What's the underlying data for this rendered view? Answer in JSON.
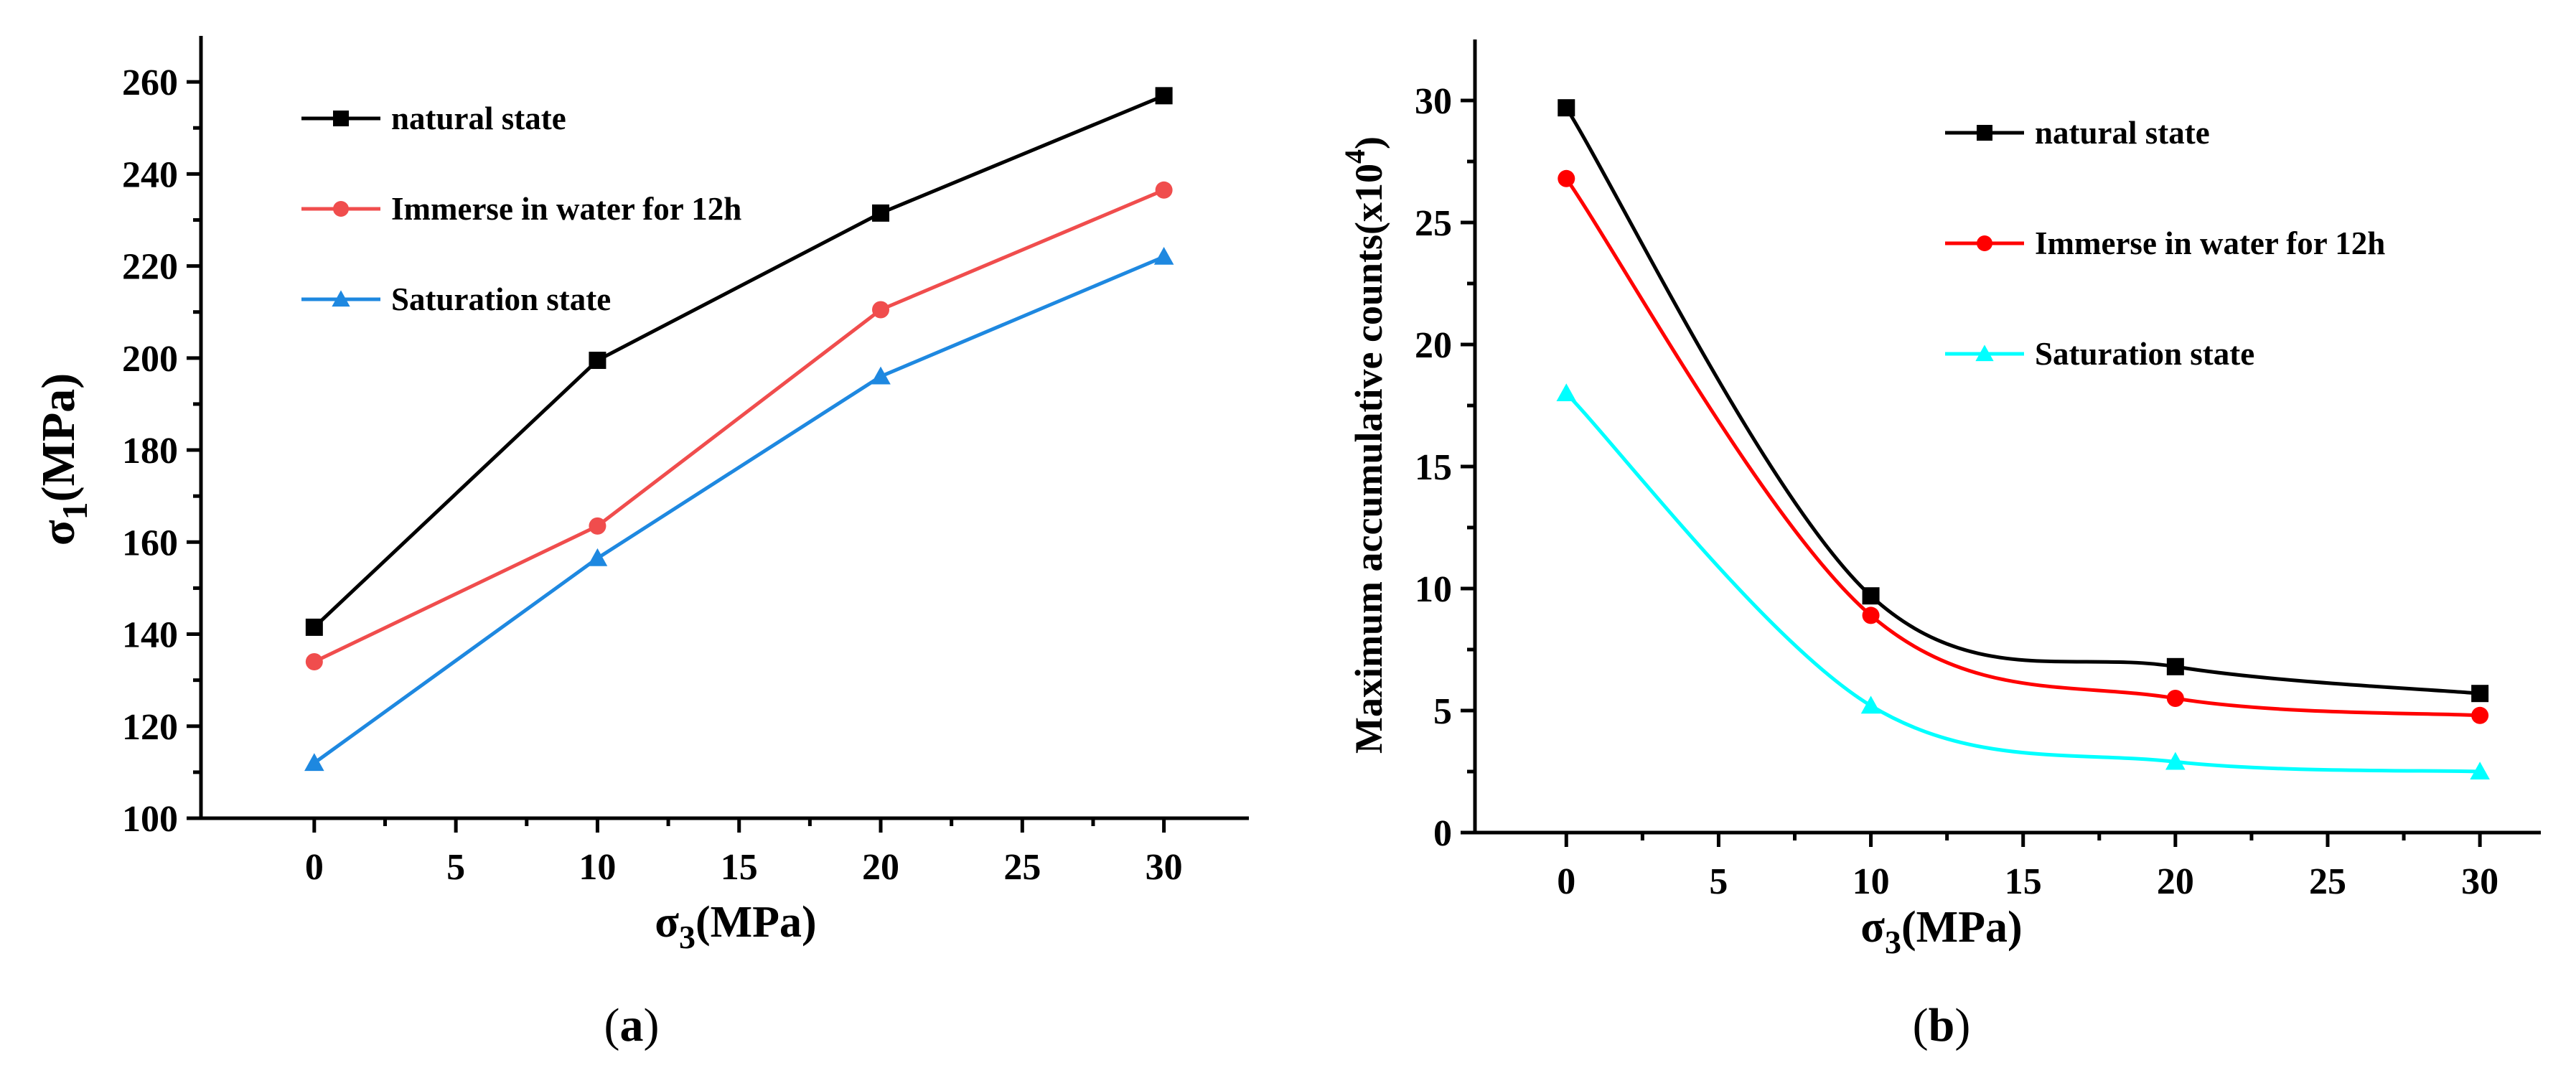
{
  "chart_data": [
    {
      "type": "line",
      "panel": "a",
      "caption": "(a)",
      "caption_open": "(",
      "caption_letter": "a",
      "caption_close": ")",
      "xlabel": "σ3(MPa)",
      "xlabel_main": "σ",
      "xlabel_sub": "3",
      "xlabel_rest": "(MPa)",
      "ylabel": "σ1(MPa)",
      "ylabel_main": "σ",
      "ylabel_sub": "1",
      "ylabel_rest": "(MPa)",
      "xlim": [
        -4,
        33
      ],
      "ylim": [
        100,
        270
      ],
      "xticks": [
        0,
        5,
        10,
        15,
        20,
        25,
        30
      ],
      "yticks": [
        100,
        120,
        140,
        160,
        180,
        200,
        220,
        240,
        260
      ],
      "legend_position": "top-left",
      "x": [
        0,
        10,
        20,
        30
      ],
      "series": [
        {
          "name": "natural state",
          "color": "#000000",
          "marker": "square",
          "values": [
            141.5,
            199.5,
            231.5,
            257.0
          ]
        },
        {
          "name": "Immerse in water for 12h",
          "color": "#f04d4d",
          "marker": "circle",
          "values": [
            134.0,
            163.5,
            210.5,
            236.5
          ]
        },
        {
          "name": "Saturation state",
          "color": "#1e88e0",
          "marker": "triangle",
          "values": [
            112.0,
            156.5,
            196.0,
            222.0
          ]
        }
      ]
    },
    {
      "type": "line",
      "panel": "b",
      "caption": "(b)",
      "caption_open": "(",
      "caption_letter": "b",
      "caption_close": ")",
      "xlabel": "σ3(MPa)",
      "xlabel_main": "σ",
      "xlabel_sub": "3",
      "xlabel_rest": "(MPa)",
      "ylabel": "Maximum accumulative counts(x10^4)",
      "ylabel_main": "Maximum accumulative counts(x10",
      "ylabel_sup": "4",
      "ylabel_rest": ")",
      "xlim": [
        -3,
        32
      ],
      "ylim": [
        0,
        32.5
      ],
      "xticks": [
        0,
        5,
        10,
        15,
        20,
        25,
        30
      ],
      "yticks": [
        0,
        5,
        10,
        15,
        20,
        25,
        30
      ],
      "legend_position": "top-right",
      "smooth": true,
      "x": [
        0,
        10,
        20,
        30
      ],
      "series": [
        {
          "name": "natural state",
          "color": "#000000",
          "marker": "square",
          "values": [
            29.7,
            9.7,
            6.8,
            5.7
          ]
        },
        {
          "name": "Immerse in water for 12h",
          "color": "#ff0000",
          "marker": "circle",
          "values": [
            26.8,
            8.9,
            5.5,
            4.8
          ]
        },
        {
          "name": "Saturation state",
          "color": "#00ffff",
          "marker": "triangle",
          "values": [
            18.0,
            5.2,
            2.9,
            2.5
          ]
        }
      ]
    }
  ]
}
